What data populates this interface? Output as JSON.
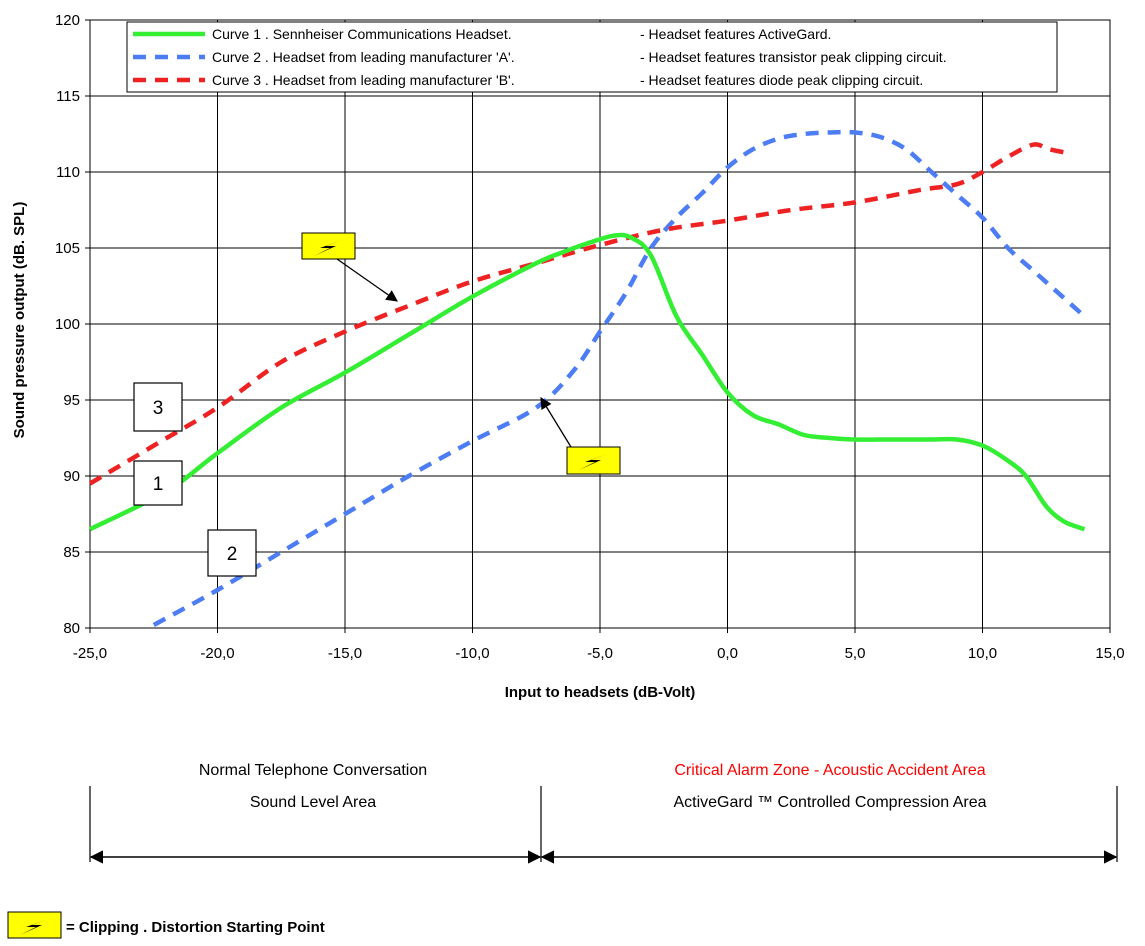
{
  "chart_data": {
    "type": "line",
    "title": "",
    "xlabel": "Input to headsets (dB-Volt)",
    "ylabel": "Sound pressure output (dB. SPL)",
    "xlim": [
      -25,
      15
    ],
    "ylim": [
      80,
      120
    ],
    "xticks": [
      -25,
      -20,
      -15,
      -10,
      -5,
      0,
      5,
      10,
      15
    ],
    "xtick_labels": [
      "-25,0",
      "-20,0",
      "-15,0",
      "-10,0",
      "-5,0",
      "0,0",
      "5,0",
      "10,0",
      "15,0"
    ],
    "yticks": [
      80,
      85,
      90,
      95,
      100,
      105,
      110,
      115,
      120
    ],
    "ytick_labels": [
      "80",
      "85",
      "90",
      "95",
      "100",
      "105",
      "110",
      "115",
      "120"
    ],
    "grid": true,
    "legend_position": "top-center",
    "series": [
      {
        "name": "Curve 1 .  Sennheiser Communications Headset.",
        "description": "-   Headset features ActiveGard.",
        "marker_label": "1",
        "color": "#33ee33",
        "style": "solid",
        "x": [
          -25,
          -22,
          -20,
          -17.5,
          -15,
          -12.5,
          -10,
          -7.5,
          -6.5,
          -5.5,
          -4.5,
          -3.8,
          -3,
          -2,
          -1,
          0,
          1,
          2,
          3,
          4,
          5,
          6,
          7,
          8,
          9,
          10,
          11,
          11.7,
          12.5,
          13.2,
          14
        ],
        "y": [
          86.5,
          89,
          91.5,
          94.5,
          96.8,
          99.3,
          101.8,
          104,
          104.7,
          105.3,
          105.8,
          105.7,
          104.5,
          100.5,
          98,
          95.5,
          94,
          93.4,
          92.7,
          92.5,
          92.4,
          92.4,
          92.4,
          92.4,
          92.4,
          92,
          91,
          90,
          88,
          87,
          86.5
        ]
      },
      {
        "name": "Curve 2 .  Headset from leading manufacturer 'A'.",
        "description": "-   Headset features transistor peak clipping circuit.",
        "marker_label": "2",
        "color": "#4d7df5",
        "style": "dashed",
        "x": [
          -22.5,
          -20,
          -17.5,
          -15,
          -12.5,
          -10,
          -7.5,
          -6,
          -5,
          -4,
          -3,
          -2,
          -1,
          0,
          1,
          2,
          3,
          4,
          5,
          6,
          7,
          8,
          9,
          10,
          11,
          12,
          13,
          14
        ],
        "y": [
          80.2,
          82.5,
          85,
          87.5,
          90,
          92.3,
          94.5,
          97,
          99.5,
          102,
          105,
          107,
          108.6,
          110.3,
          111.5,
          112.2,
          112.5,
          112.6,
          112.6,
          112.3,
          111.5,
          110,
          108.5,
          107,
          105,
          103.5,
          102,
          100.5
        ]
      },
      {
        "name": "Curve 3 .  Headset from leading manufacturer 'B'.",
        "description": "-   Headset features diode peak clipping circuit.",
        "marker_label": "3",
        "color": "#ee2222",
        "style": "dashed",
        "x": [
          -25,
          -22.5,
          -20,
          -17.5,
          -15,
          -12.5,
          -10,
          -7.5,
          -5,
          -2.5,
          0,
          2.5,
          5,
          7.5,
          9,
          10,
          11,
          12,
          12.6,
          13.5
        ],
        "y": [
          89.5,
          92,
          94.5,
          97.5,
          99.5,
          101.2,
          102.8,
          104,
          105.2,
          106.2,
          106.8,
          107.5,
          108,
          108.8,
          109.2,
          110,
          111,
          111.8,
          111.5,
          111.2
        ]
      }
    ],
    "clipping_points": [
      {
        "series": "Curve 3",
        "x": -13,
        "y": 101
      },
      {
        "series": "Curve 2",
        "x": -7.3,
        "y": 95
      }
    ],
    "zones": [
      {
        "line1": "Normal Telephone Conversation",
        "line2": "Sound Level Area",
        "line1_color": "#000000"
      },
      {
        "line1": "Critical Alarm Zone - Acoustic Accident Area",
        "line2": "ActiveGard ™ Controlled Compression Area",
        "line1_color": "#ff0000"
      }
    ],
    "footnote": "= Clipping . Distortion Starting Point",
    "icons": {
      "clipping_marker": "lightning-bolt-icon",
      "marker_fill": "#ffff00"
    }
  }
}
